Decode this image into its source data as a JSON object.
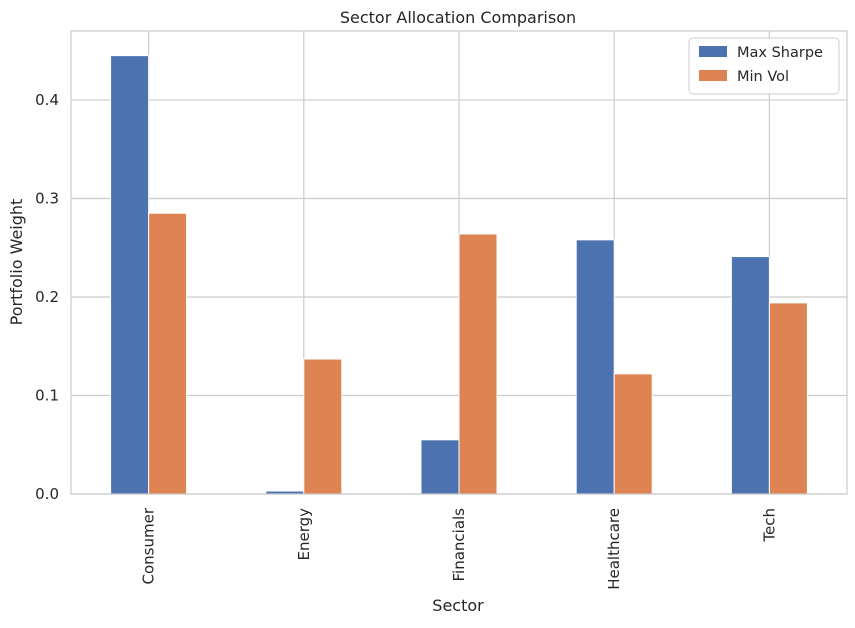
{
  "chart_data": {
    "type": "bar",
    "title": "Sector Allocation Comparison",
    "xlabel": "Sector",
    "ylabel": "Portfolio Weight",
    "categories": [
      "Consumer",
      "Energy",
      "Financials",
      "Healthcare",
      "Tech"
    ],
    "series": [
      {
        "name": "Max Sharpe",
        "color": "#4c72b0",
        "values": [
          0.445,
          0.003,
          0.055,
          0.258,
          0.241
        ]
      },
      {
        "name": "Min Vol",
        "color": "#dd8452",
        "values": [
          0.285,
          0.137,
          0.264,
          0.122,
          0.194
        ]
      }
    ],
    "ylim": [
      0,
      0.47
    ],
    "yticks": [
      0.0,
      0.1,
      0.2,
      0.3,
      0.4
    ],
    "ytick_labels": [
      "0.0",
      "0.1",
      "0.2",
      "0.3",
      "0.4"
    ],
    "grid": true,
    "legend_position": "top-right",
    "x_tick_rotation": "vertical"
  }
}
